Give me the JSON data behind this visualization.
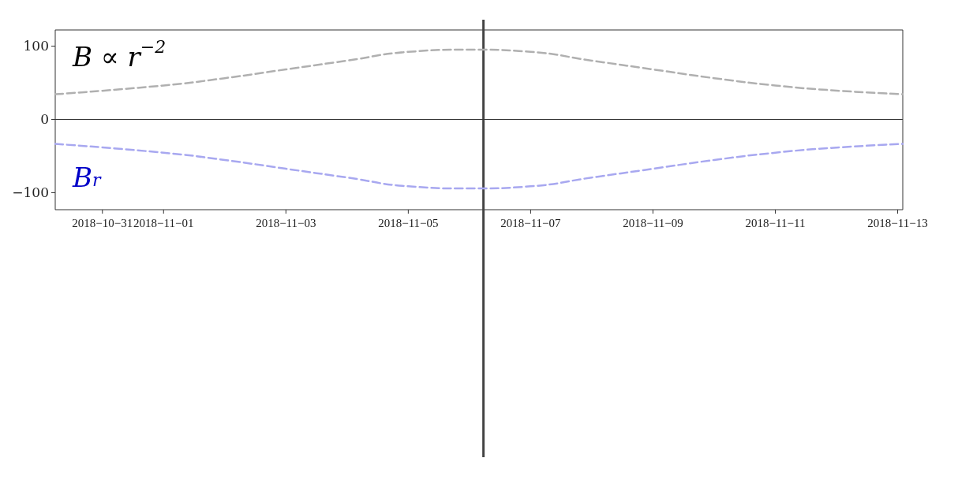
{
  "chart_data": {
    "type": "line",
    "x": [
      "2018-10-30T05:30",
      "2018-11-01",
      "2018-11-02",
      "2018-11-03",
      "2018-11-04",
      "2018-11-05",
      "2018-11-06",
      "2018-11-07",
      "2018-11-08",
      "2018-11-09",
      "2018-11-10",
      "2018-11-11",
      "2018-11-12",
      "2018-11-13T02:00"
    ],
    "series": [
      {
        "name": "B ∝ r$^{−2}$",
        "color": "#b0b0b0",
        "values": [
          34,
          46,
          56,
          68,
          80,
          92,
          95,
          92,
          80,
          68,
          56,
          46,
          39,
          34
        ]
      },
      {
        "name": "B$_{r}$",
        "color": "#a8a8f0",
        "values": [
          -34,
          -46,
          -56,
          -68,
          -80,
          -92,
          -95,
          -92,
          -80,
          -68,
          -56,
          -46,
          -39,
          -34
        ]
      }
    ],
    "line_style": "dashed",
    "marker": "none",
    "grid": false,
    "xlim": [
      "2018-10-30T05:30",
      "2018-11-13T02:00"
    ],
    "xticks": [
      {
        "value": "2018-10-31",
        "label": "2018−10−31"
      },
      {
        "value": "2018-11-01",
        "label": "2018−11−01"
      },
      {
        "value": "2018-11-03",
        "label": "2018−11−03"
      },
      {
        "value": "2018-11-05",
        "label": "2018−11−05"
      },
      {
        "value": "2018-11-07",
        "label": "2018−11−07"
      },
      {
        "value": "2018-11-09",
        "label": "2018−11−09"
      },
      {
        "value": "2018-11-11",
        "label": "2018−11−11"
      },
      {
        "value": "2018-11-13",
        "label": "2018−11−13"
      }
    ],
    "ylim": [
      -124,
      122
    ],
    "yticks": [
      {
        "value": -100,
        "label": "−100"
      },
      0,
      100
    ],
    "ref_lines": [
      {
        "axis": "y",
        "value": 0,
        "color": "#333333"
      },
      {
        "axis": "x",
        "value": "2018-11-06T05:30",
        "color": "#444444"
      }
    ]
  }
}
